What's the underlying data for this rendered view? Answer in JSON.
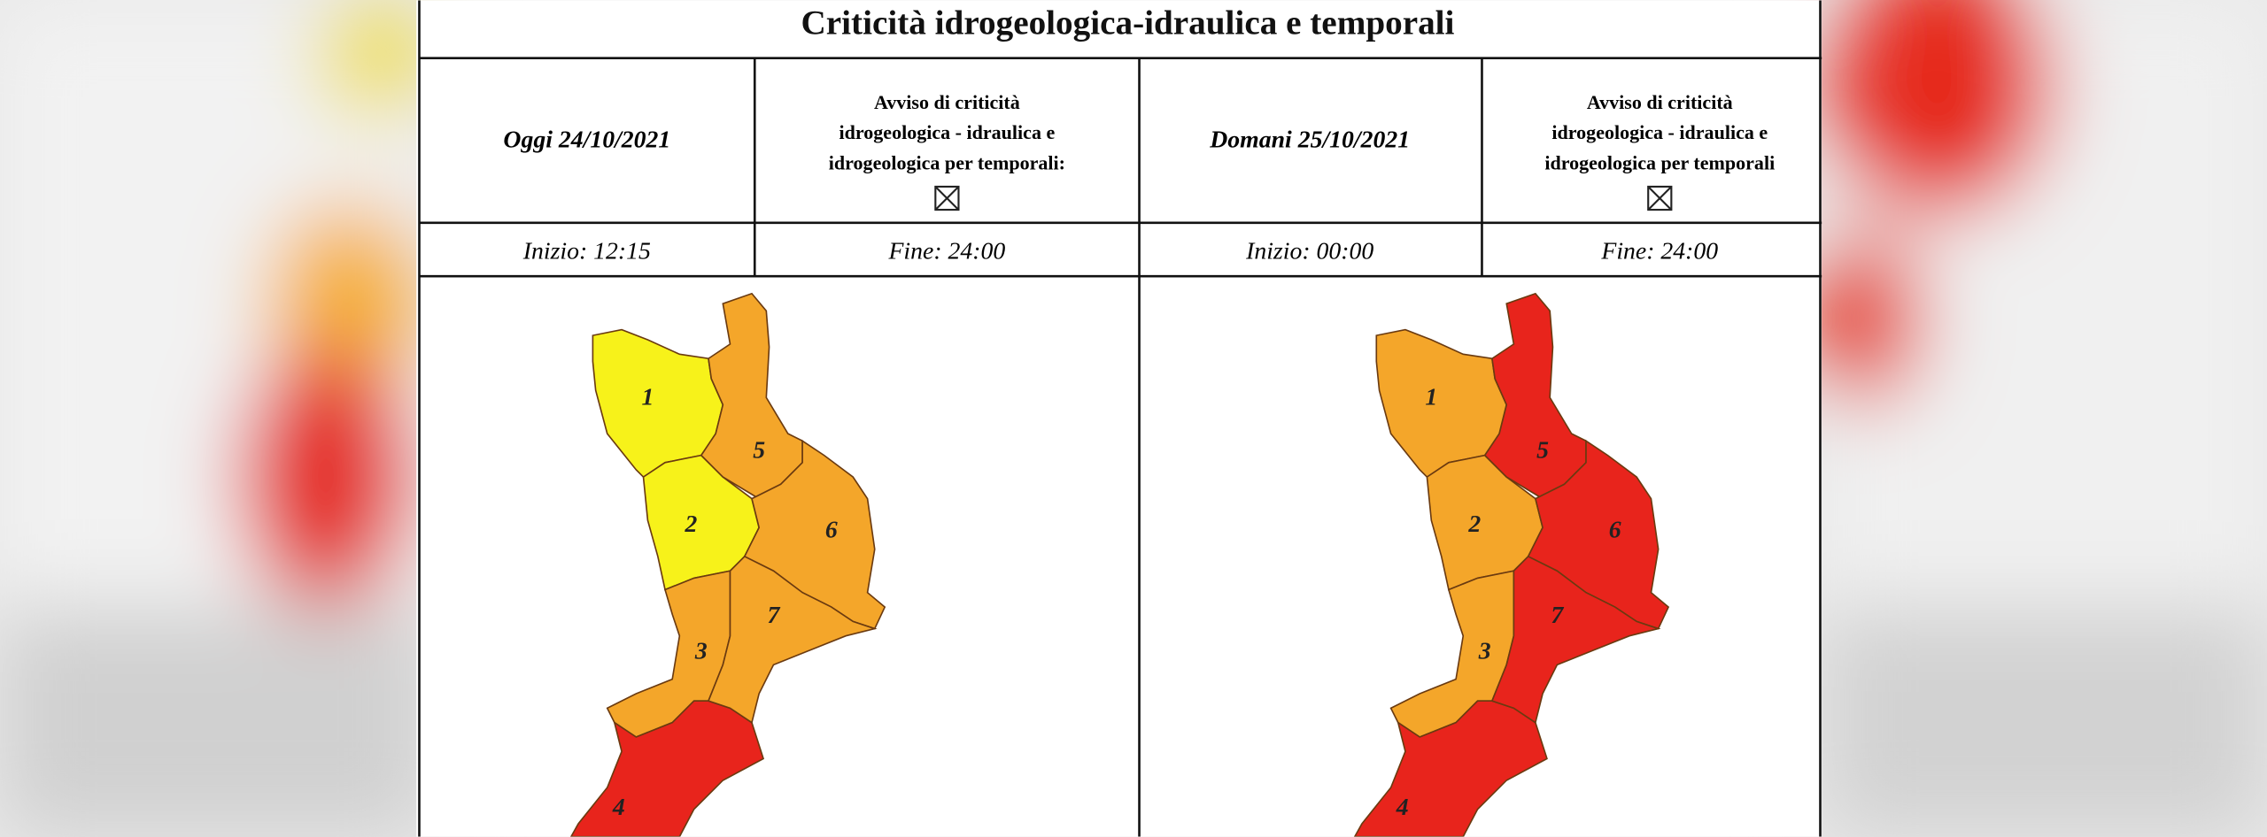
{
  "title": "Criticità idrogeologica-idraulica e temporali",
  "days": [
    {
      "date": "Oggi 24/10/2021",
      "notice": [
        "Avviso di criticità",
        "idrogeologica - idraulica e",
        "idrogeologica per temporali:"
      ],
      "start": "Inizio: 12:15",
      "end": "Fine: 24:00",
      "zones": [
        "1",
        "2",
        "3",
        "4",
        "5",
        "6",
        "7"
      ]
    },
    {
      "date": "Domani 25/10/2021",
      "notice": [
        "Avviso di criticità",
        "idrogeologica - idraulica e",
        "idrogeologica per temporali"
      ],
      "start": "Inizio: 00:00",
      "end": "Fine: 24:00",
      "zones": [
        "1",
        "2",
        "3",
        "4",
        "5",
        "6",
        "7"
      ]
    }
  ]
}
